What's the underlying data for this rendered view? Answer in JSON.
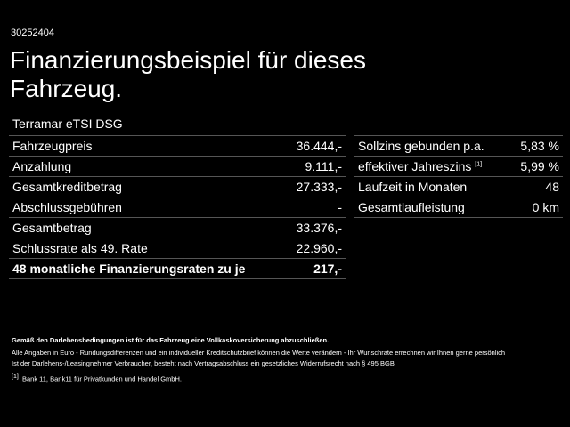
{
  "id": "30252404",
  "title": "Finanzierungsbeispiel für dieses Fahrzeug.",
  "model": "Terramar eTSI DSG",
  "left_rows": [
    {
      "label": "Fahrzeugpreis",
      "value": "36.444,-"
    },
    {
      "label": "Anzahlung",
      "value": "9.111,-"
    },
    {
      "label": "Gesamtkreditbetrag",
      "value": "27.333,-"
    },
    {
      "label": "Abschlussgebühren",
      "value": "-"
    },
    {
      "label": "Gesamtbetrag",
      "value": "33.376,-"
    },
    {
      "label": "Schlussrate als 49. Rate",
      "value": "22.960,-"
    },
    {
      "label": "48 monatliche Finanzierungsraten zu je",
      "value": "217,-"
    }
  ],
  "right_rows": [
    {
      "label": "Sollzins gebunden p.a.",
      "value": "5,83 %"
    },
    {
      "label": "effektiver Jahreszins",
      "sup": "[1]",
      "value": "5,99 %"
    },
    {
      "label": "Laufzeit in Monaten",
      "value": "48"
    },
    {
      "label": "Gesamtlaufleistung",
      "value": "0 km"
    }
  ],
  "footer": {
    "bold": "Gemäß den Darlehensbedingungen ist für das Fahrzeug eine Vollkaskoversicherung abzuschließen.",
    "line1": "Alle Angaben in Euro - Rundungsdifferenzen und ein individueller Kreditschutzbrief können die Werte verändern - Ihr Wunschrate errechnen wir Ihnen gerne persönlich",
    "line2": "Ist der Darlehens-/Leasingnehmer Verbraucher, besteht nach Vertragsabschluss ein gesetzliches Widerrufsrecht nach § 495 BGB",
    "note_mark": "[1]",
    "note": "Bank 11, Bank11 für Privatkunden und Handel GmbH."
  }
}
